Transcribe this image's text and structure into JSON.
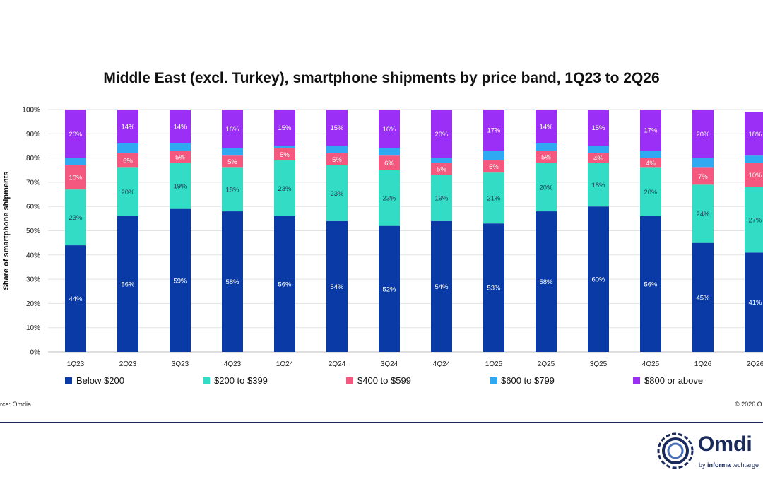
{
  "chart_data": {
    "type": "bar",
    "stacked": true,
    "title": "Middle East (excl. Turkey), smartphone shipments by price band, 1Q23 to 2Q26",
    "ylabel": "Share of smartphone shipments",
    "xlabel": "",
    "ylim": [
      0,
      100
    ],
    "yticks": [
      "0%",
      "10%",
      "20%",
      "30%",
      "40%",
      "50%",
      "60%",
      "70%",
      "80%",
      "90%",
      "100%"
    ],
    "grid": true,
    "legend_position": "bottom",
    "categories": [
      "1Q23",
      "2Q23",
      "3Q23",
      "4Q23",
      "1Q24",
      "2Q24",
      "3Q24",
      "4Q24",
      "1Q25",
      "2Q25",
      "3Q25",
      "4Q25",
      "1Q26",
      "2Q26"
    ],
    "series": [
      {
        "name": "Below $200",
        "color": "#0a3aa6",
        "values": [
          44,
          56,
          59,
          58,
          56,
          54,
          52,
          54,
          53,
          58,
          60,
          56,
          45,
          41
        ],
        "labels": [
          "44%",
          "56%",
          "59%",
          "58%",
          "56%",
          "54%",
          "52%",
          "54%",
          "53%",
          "58%",
          "60%",
          "56%",
          "45%",
          "41%"
        ]
      },
      {
        "name": "$200 to $399",
        "color": "#33dcc4",
        "values": [
          23,
          20,
          19,
          18,
          23,
          23,
          23,
          19,
          21,
          20,
          18,
          20,
          24,
          27
        ],
        "labels": [
          "23%",
          "20%",
          "19%",
          "18%",
          "23%",
          "23%",
          "23%",
          "19%",
          "21%",
          "20%",
          "18%",
          "20%",
          "24%",
          "27%"
        ]
      },
      {
        "name": "$400 to $599",
        "color": "#f5587e",
        "values": [
          10,
          6,
          5,
          5,
          5,
          5,
          6,
          5,
          5,
          5,
          4,
          4,
          7,
          10
        ],
        "labels": [
          "10%",
          "6%",
          "5%",
          "5%",
          "5%",
          "5%",
          "6%",
          "5%",
          "5%",
          "5%",
          "4%",
          "4%",
          "7%",
          "10%"
        ]
      },
      {
        "name": "$600 to $799",
        "color": "#2fa9f2",
        "values": [
          3,
          4,
          3,
          3,
          1,
          3,
          3,
          2,
          4,
          3,
          3,
          3,
          4,
          3
        ],
        "labels": [
          "",
          "",
          "",
          "",
          "",
          "",
          "",
          "",
          "",
          "",
          "",
          "",
          "",
          ""
        ]
      },
      {
        "name": "$800 or above",
        "color": "#9b2ff5",
        "values": [
          20,
          14,
          14,
          16,
          15,
          15,
          16,
          20,
          17,
          14,
          15,
          17,
          20,
          18
        ],
        "labels": [
          "20%",
          "14%",
          "14%",
          "16%",
          "15%",
          "15%",
          "16%",
          "20%",
          "17%",
          "14%",
          "15%",
          "17%",
          "20%",
          "18%"
        ]
      }
    ]
  },
  "footer": {
    "source": "rce: Omdia",
    "copyright": "© 2026 O"
  },
  "logo": {
    "word": "Omdi",
    "sub_prefix": "by ",
    "sub_brand": "informa",
    "sub_suffix": " techtarge"
  }
}
